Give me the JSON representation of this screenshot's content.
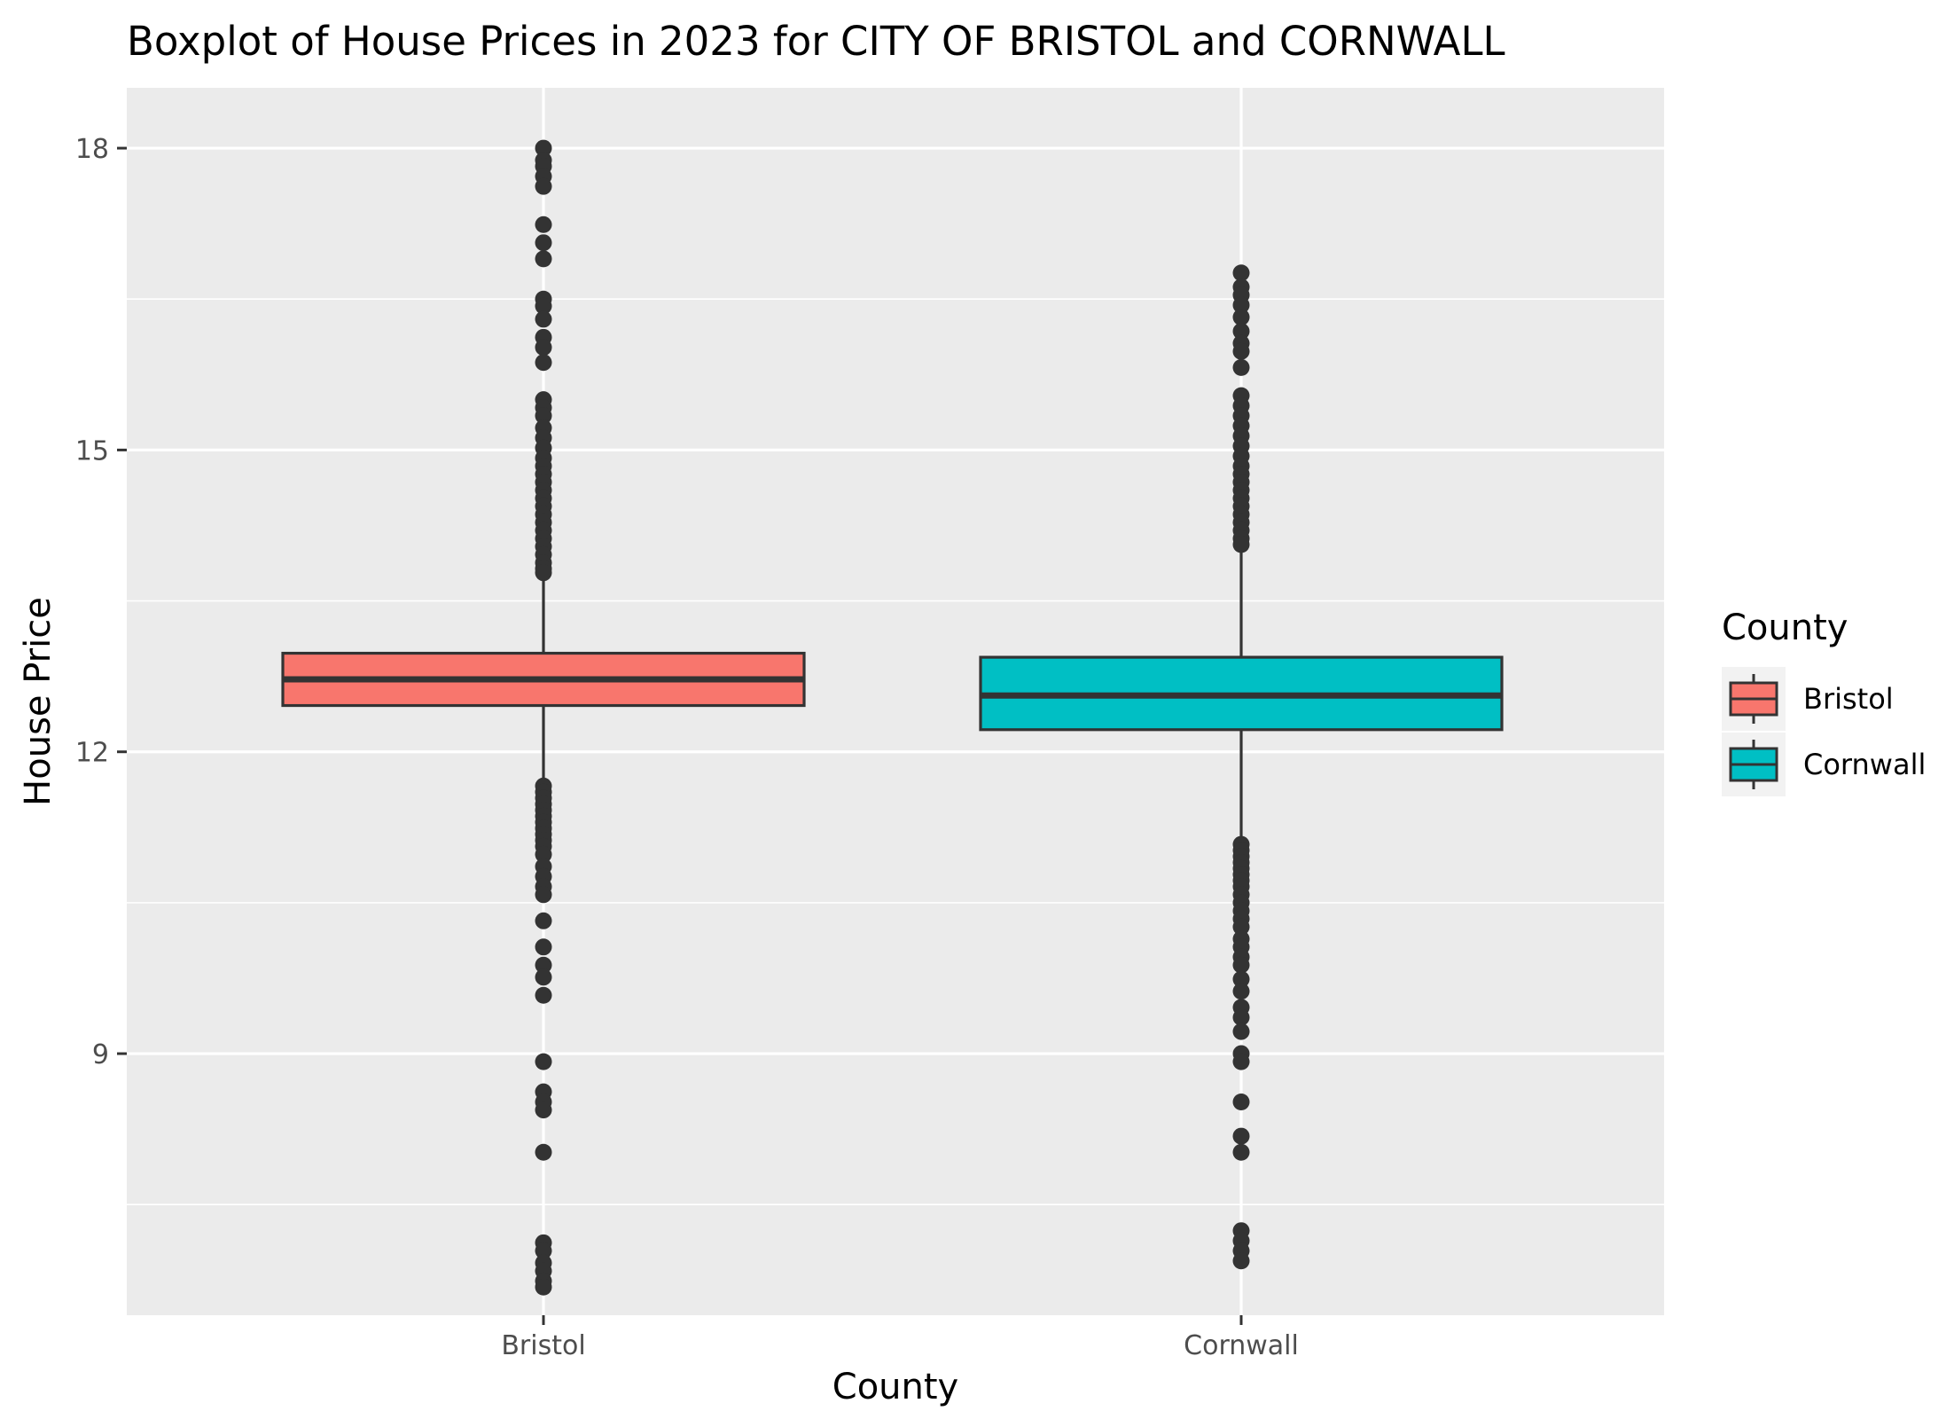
{
  "chart_data": {
    "type": "box",
    "title": "Boxplot of House Prices in 2023 for CITY OF BRISTOL and CORNWALL",
    "xlabel": "County",
    "ylabel": "House Price",
    "categories": [
      "Bristol",
      "Cornwall"
    ],
    "ylim": [
      6.4,
      18.6
    ],
    "yticks": [
      9,
      12,
      15,
      18
    ],
    "y_minor_ticks": [
      7.5,
      10.5,
      13.5,
      16.5
    ],
    "grid": true,
    "legend": {
      "title": "County",
      "position": "right"
    },
    "series": [
      {
        "name": "Bristol",
        "color": "#F8766D",
        "q1": 12.46,
        "median": 12.72,
        "q3": 12.98,
        "whisker_low": 11.7,
        "whisker_high": 13.76,
        "outliers": [
          18.0,
          17.88,
          17.82,
          17.72,
          17.62,
          17.24,
          17.06,
          16.9,
          16.5,
          16.43,
          16.3,
          16.12,
          16.02,
          15.87,
          15.5,
          15.42,
          15.34,
          15.22,
          15.12,
          15.02,
          14.92,
          14.84,
          14.76,
          14.68,
          14.6,
          14.52,
          14.44,
          14.36,
          14.28,
          14.2,
          14.12,
          14.04,
          13.96,
          13.88,
          13.82,
          13.78,
          11.66,
          11.6,
          11.54,
          11.48,
          11.42,
          11.36,
          11.3,
          11.24,
          11.18,
          11.12,
          11.06,
          10.98,
          10.86,
          10.76,
          10.66,
          10.58,
          10.32,
          10.06,
          9.88,
          9.76,
          9.58,
          8.92,
          8.62,
          8.52,
          8.44,
          8.02,
          7.12,
          7.04,
          6.92,
          6.84,
          6.74,
          6.68
        ]
      },
      {
        "name": "Cornwall",
        "color": "#00BFC4",
        "q1": 12.22,
        "median": 12.56,
        "q3": 12.94,
        "whisker_low": 11.1,
        "whisker_high": 14.06,
        "outliers": [
          16.76,
          16.62,
          16.54,
          16.44,
          16.32,
          16.18,
          16.06,
          15.98,
          15.82,
          15.54,
          15.44,
          15.34,
          15.24,
          15.14,
          15.04,
          14.94,
          14.84,
          14.76,
          14.68,
          14.6,
          14.52,
          14.44,
          14.36,
          14.28,
          14.2,
          14.12,
          14.06,
          11.08,
          11.02,
          10.96,
          10.9,
          10.84,
          10.78,
          10.72,
          10.66,
          10.58,
          10.5,
          10.42,
          10.34,
          10.26,
          10.14,
          10.06,
          9.96,
          9.88,
          9.74,
          9.62,
          9.46,
          9.36,
          9.22,
          9.0,
          8.92,
          8.52,
          8.18,
          8.02,
          7.24,
          7.14,
          7.04,
          6.94
        ]
      }
    ]
  }
}
